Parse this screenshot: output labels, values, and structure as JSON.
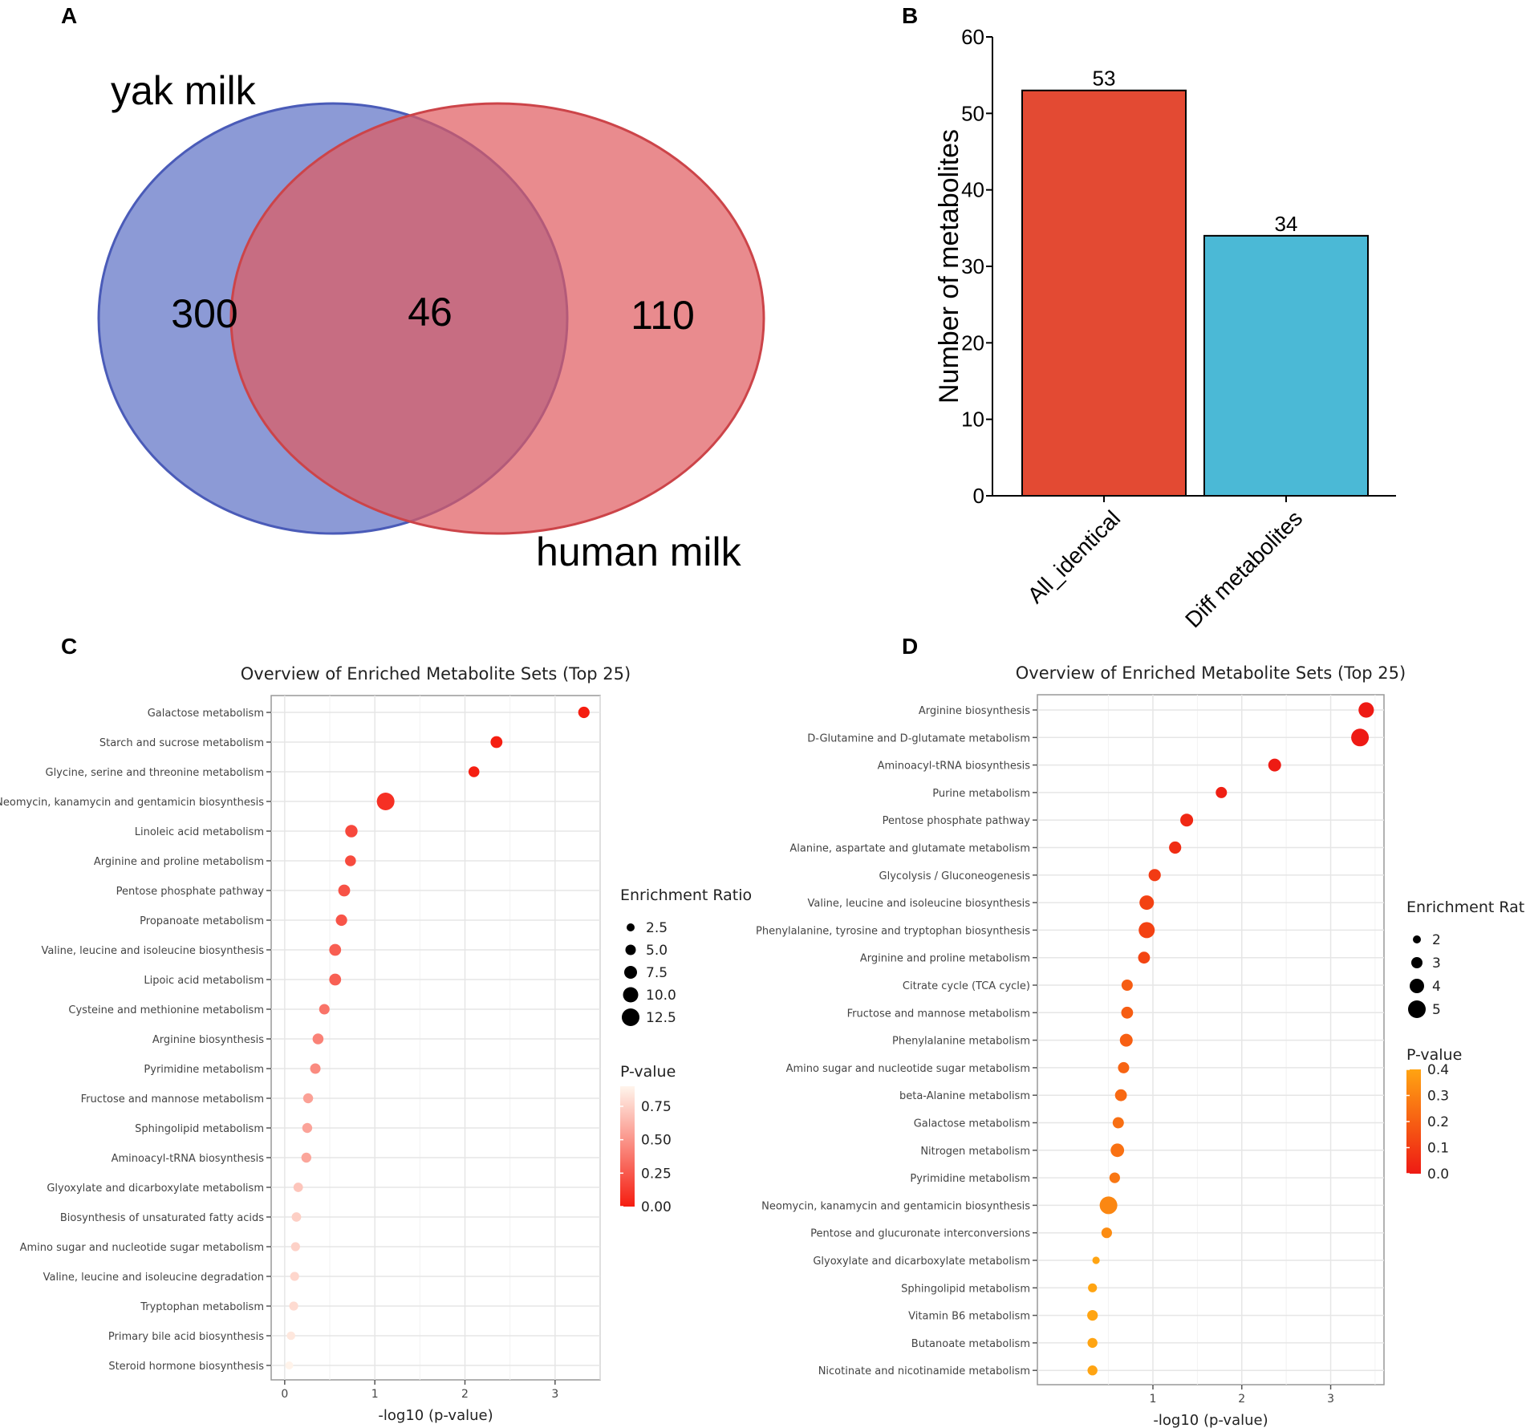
{
  "panels": {
    "a": "A",
    "b": "B",
    "c": "C",
    "d": "D"
  },
  "venn": {
    "sets": [
      {
        "name": "yak milk",
        "color": "#5b6fc4"
      },
      {
        "name": "human milk",
        "color": "#e05a5e"
      }
    ],
    "regions": {
      "yak_only": "300",
      "shared": "46",
      "human_only": "110"
    }
  },
  "chart_data": [
    {
      "type": "bar",
      "panel": "B",
      "categories": [
        "All_identical",
        "Diff metabolites"
      ],
      "values": [
        53,
        34
      ],
      "colors": [
        "#e34a33",
        "#4bb9d6"
      ],
      "ylabel": "Number of metabolites",
      "ylim": [
        0,
        60
      ],
      "yticks": [
        0,
        10,
        20,
        30,
        40,
        50,
        60
      ]
    },
    {
      "type": "scatter",
      "panel": "C",
      "title": "Overview of Enriched Metabolite Sets (Top 25)",
      "xlabel": "-log10 (p-value)",
      "xlim": [
        -0.15,
        3.5
      ],
      "xticks": [
        0,
        1,
        2,
        3
      ],
      "size_legend_title": "Enrichment Ratio",
      "size_legend": [
        "2.5",
        "5.0",
        "7.5",
        "10.0",
        "12.5"
      ],
      "size_legend_values": [
        2.5,
        5.0,
        7.5,
        10.0,
        12.5
      ],
      "color_legend_title": "P-value",
      "color_legend": [
        "0.75",
        "0.50",
        "0.25",
        "0.00"
      ],
      "color_legend_values": [
        0.75,
        0.5,
        0.25,
        0.0
      ],
      "color_range": [
        0,
        0.9
      ],
      "color_low": "#f51d10",
      "color_high": "#fff5ec",
      "categories": [
        "Galactose metabolism",
        "Starch and sucrose metabolism",
        "Glycine, serine and threonine metabolism",
        "Neomycin, kanamycin and gentamicin biosynthesis",
        "Linoleic acid metabolism",
        "Arginine and proline metabolism",
        "Pentose phosphate pathway",
        "Propanoate metabolism",
        "Valine, leucine and isoleucine biosynthesis",
        "Lipoic acid metabolism",
        "Cysteine and methionine metabolism",
        "Arginine biosynthesis",
        "Pyrimidine metabolism",
        "Fructose and mannose metabolism",
        "Sphingolipid metabolism",
        "Aminoacyl-tRNA biosynthesis",
        "Glyoxylate and dicarboxylate metabolism",
        "Biosynthesis of unsaturated fatty acids",
        "Amino sugar and nucleotide sugar metabolism",
        "Valine, leucine and isoleucine degradation",
        "Tryptophan metabolism",
        "Primary bile acid biosynthesis",
        "Steroid hormone biosynthesis"
      ],
      "x": [
        3.32,
        2.35,
        2.1,
        1.12,
        0.74,
        0.73,
        0.66,
        0.63,
        0.56,
        0.56,
        0.44,
        0.37,
        0.34,
        0.26,
        0.25,
        0.24,
        0.15,
        0.13,
        0.12,
        0.11,
        0.1,
        0.07,
        0.05
      ],
      "enrichment": [
        6.0,
        6.5,
        5.5,
        12.5,
        7.0,
        5.5,
        6.5,
        6.0,
        6.5,
        6.5,
        5.0,
        5.5,
        5.0,
        4.5,
        4.5,
        4.5,
        4.0,
        4.0,
        3.5,
        3.5,
        3.5,
        3.0,
        2.5
      ],
      "pvalue": [
        0.0005,
        0.005,
        0.008,
        0.08,
        0.18,
        0.19,
        0.22,
        0.23,
        0.27,
        0.28,
        0.36,
        0.42,
        0.46,
        0.55,
        0.56,
        0.57,
        0.7,
        0.74,
        0.75,
        0.77,
        0.79,
        0.84,
        0.89
      ]
    },
    {
      "type": "scatter",
      "panel": "D",
      "title": "Overview of Enriched Metabolite Sets (Top 25)",
      "xlabel": "-log10 (p-value)",
      "xlim": [
        -0.3,
        3.6
      ],
      "xticks": [
        1,
        2,
        3
      ],
      "size_legend_title": "Enrichment Ratio",
      "size_legend": [
        "2",
        "3",
        "4",
        "5"
      ],
      "size_legend_values": [
        2,
        3,
        4,
        5
      ],
      "color_legend_title": "P-value",
      "color_legend": [
        "0.4",
        "0.3",
        "0.2",
        "0.1",
        "0.0"
      ],
      "color_legend_values": [
        0.4,
        0.3,
        0.2,
        0.1,
        0.0
      ],
      "color_range": [
        0,
        0.4
      ],
      "color_low": "#ee1a14",
      "color_high": "#ffa412",
      "categories": [
        "Arginine biosynthesis",
        "D-Glutamine and D-glutamate metabolism",
        "Aminoacyl-tRNA biosynthesis",
        "Purine metabolism",
        "Pentose phosphate pathway",
        "Alanine, aspartate and glutamate metabolism",
        "Glycolysis / Gluconeogenesis",
        "Valine, leucine and isoleucine biosynthesis",
        "Phenylalanine, tyrosine and tryptophan biosynthesis",
        "Arginine and proline metabolism",
        "Citrate cycle (TCA cycle)",
        "Fructose and mannose metabolism",
        "Phenylalanine metabolism",
        "Amino sugar and nucleotide sugar metabolism",
        "beta-Alanine metabolism",
        "Galactose metabolism",
        "Nitrogen metabolism",
        "Pyrimidine metabolism",
        "Neomycin, kanamycin and gentamicin biosynthesis",
        "Pentose and glucuronate interconversions",
        "Glyoxylate and dicarboxylate metabolism",
        "Sphingolipid metabolism",
        "Vitamin B6 metabolism",
        "Butanoate metabolism",
        "Nicotinate and nicotinamide metabolism"
      ],
      "x": [
        3.4,
        3.33,
        2.37,
        1.77,
        1.38,
        1.25,
        1.02,
        0.93,
        0.93,
        0.9,
        0.71,
        0.71,
        0.7,
        0.67,
        0.64,
        0.61,
        0.6,
        0.57,
        0.5,
        0.48,
        0.36,
        0.32,
        0.32,
        0.32,
        0.32
      ],
      "enrichment": [
        4.3,
        5.0,
        3.5,
        3.0,
        3.5,
        3.3,
        3.3,
        4.0,
        4.5,
        3.2,
        3.0,
        3.2,
        3.5,
        3.0,
        3.2,
        3.0,
        3.7,
        2.8,
        5.0,
        2.8,
        1.8,
        2.3,
        2.8,
        2.6,
        2.6
      ],
      "pvalue": [
        0.0004,
        0.0005,
        0.004,
        0.017,
        0.042,
        0.056,
        0.095,
        0.117,
        0.117,
        0.126,
        0.195,
        0.195,
        0.2,
        0.214,
        0.229,
        0.245,
        0.251,
        0.269,
        0.316,
        0.331,
        0.437,
        0.479,
        0.479,
        0.479,
        0.479
      ]
    }
  ]
}
